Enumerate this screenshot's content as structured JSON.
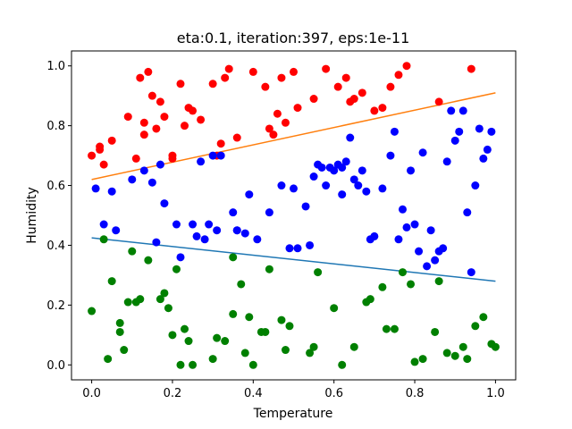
{
  "chart_data": {
    "type": "scatter",
    "title": "eta:0.1, iteration:397, eps:1e-11",
    "xlabel": "Temperature",
    "ylabel": "Humidity",
    "xlim": [
      -0.05,
      1.05
    ],
    "ylim": [
      -0.05,
      1.05
    ],
    "xticks": [
      0.0,
      0.2,
      0.4,
      0.6,
      0.8,
      1.0
    ],
    "xtick_labels": [
      "0.0",
      "0.2",
      "0.4",
      "0.6",
      "0.8",
      "1.0"
    ],
    "yticks": [
      0.0,
      0.2,
      0.4,
      0.6,
      0.8,
      1.0
    ],
    "ytick_labels": [
      "0.0",
      "0.2",
      "0.4",
      "0.6",
      "0.8",
      "1.0"
    ],
    "grid": false,
    "series": [
      {
        "color": "#ff0000",
        "x": [
          0.0,
          0.02,
          0.03,
          0.05,
          0.09,
          0.11,
          0.12,
          0.13,
          0.14,
          0.15,
          0.16,
          0.17,
          0.18,
          0.2,
          0.22,
          0.23,
          0.24,
          0.25,
          0.27,
          0.3,
          0.32,
          0.33,
          0.34,
          0.36,
          0.4,
          0.43,
          0.44,
          0.45,
          0.46,
          0.47,
          0.48,
          0.5,
          0.51,
          0.55,
          0.58,
          0.61,
          0.63,
          0.64,
          0.65,
          0.67,
          0.7,
          0.72,
          0.74,
          0.76,
          0.78,
          0.86,
          0.94,
          0.13,
          0.2,
          0.31,
          0.02
        ],
        "y": [
          0.7,
          0.72,
          0.67,
          0.75,
          0.83,
          0.69,
          0.96,
          0.77,
          0.98,
          0.9,
          0.79,
          0.88,
          0.83,
          0.7,
          0.94,
          0.8,
          0.86,
          0.85,
          0.82,
          0.94,
          0.74,
          0.96,
          0.99,
          0.76,
          0.98,
          0.93,
          0.79,
          0.77,
          0.84,
          0.96,
          0.81,
          0.98,
          0.86,
          0.89,
          0.99,
          0.93,
          0.96,
          0.88,
          0.89,
          0.91,
          0.85,
          0.86,
          0.93,
          0.97,
          1.0,
          0.88,
          0.99,
          0.81,
          0.69,
          0.7,
          0.73
        ]
      },
      {
        "color": "#0000ff",
        "x": [
          0.01,
          0.03,
          0.05,
          0.06,
          0.1,
          0.15,
          0.16,
          0.17,
          0.18,
          0.21,
          0.25,
          0.26,
          0.27,
          0.28,
          0.29,
          0.3,
          0.31,
          0.32,
          0.35,
          0.36,
          0.38,
          0.39,
          0.41,
          0.44,
          0.47,
          0.49,
          0.5,
          0.51,
          0.53,
          0.54,
          0.55,
          0.56,
          0.57,
          0.58,
          0.59,
          0.6,
          0.61,
          0.62,
          0.63,
          0.64,
          0.65,
          0.66,
          0.67,
          0.68,
          0.69,
          0.7,
          0.72,
          0.74,
          0.75,
          0.76,
          0.77,
          0.78,
          0.79,
          0.8,
          0.81,
          0.82,
          0.83,
          0.84,
          0.85,
          0.86,
          0.87,
          0.88,
          0.89,
          0.9,
          0.91,
          0.92,
          0.93,
          0.94,
          0.95,
          0.96,
          0.97,
          0.98,
          0.99,
          0.13,
          0.22,
          0.36,
          0.62
        ],
        "y": [
          0.59,
          0.47,
          0.58,
          0.45,
          0.62,
          0.61,
          0.41,
          0.67,
          0.54,
          0.47,
          0.47,
          0.43,
          0.68,
          0.42,
          0.47,
          0.7,
          0.45,
          0.7,
          0.51,
          0.45,
          0.44,
          0.57,
          0.42,
          0.51,
          0.6,
          0.39,
          0.59,
          0.39,
          0.53,
          0.4,
          0.63,
          0.67,
          0.66,
          0.6,
          0.66,
          0.65,
          0.67,
          0.57,
          0.68,
          0.76,
          0.62,
          0.6,
          0.65,
          0.58,
          0.42,
          0.43,
          0.59,
          0.7,
          0.78,
          0.42,
          0.52,
          0.46,
          0.65,
          0.47,
          0.38,
          0.71,
          0.33,
          0.45,
          0.35,
          0.38,
          0.39,
          0.68,
          0.85,
          0.75,
          0.78,
          0.85,
          0.51,
          0.31,
          0.6,
          0.79,
          0.69,
          0.72,
          0.78,
          0.65,
          0.36,
          0.45,
          0.66
        ]
      },
      {
        "color": "#008000",
        "x": [
          0.0,
          0.03,
          0.04,
          0.05,
          0.07,
          0.08,
          0.09,
          0.1,
          0.12,
          0.14,
          0.18,
          0.19,
          0.2,
          0.21,
          0.23,
          0.24,
          0.25,
          0.3,
          0.31,
          0.33,
          0.35,
          0.37,
          0.38,
          0.39,
          0.4,
          0.42,
          0.43,
          0.44,
          0.48,
          0.49,
          0.54,
          0.55,
          0.56,
          0.6,
          0.62,
          0.65,
          0.68,
          0.69,
          0.72,
          0.73,
          0.75,
          0.77,
          0.79,
          0.8,
          0.82,
          0.85,
          0.86,
          0.88,
          0.9,
          0.92,
          0.93,
          0.95,
          0.97,
          0.99,
          1.0,
          0.07,
          0.11,
          0.17,
          0.22,
          0.35,
          0.47
        ],
        "y": [
          0.18,
          0.42,
          0.02,
          0.28,
          0.14,
          0.05,
          0.21,
          0.38,
          0.22,
          0.35,
          0.24,
          0.19,
          0.1,
          0.32,
          0.12,
          0.08,
          0.0,
          0.02,
          0.09,
          0.08,
          0.36,
          0.27,
          0.04,
          0.16,
          0.0,
          0.11,
          0.11,
          0.32,
          0.05,
          0.13,
          0.04,
          0.06,
          0.31,
          0.19,
          0.0,
          0.06,
          0.21,
          0.22,
          0.26,
          0.12,
          0.12,
          0.31,
          0.27,
          0.01,
          0.02,
          0.11,
          0.28,
          0.04,
          0.03,
          0.06,
          0.02,
          0.13,
          0.16,
          0.07,
          0.06,
          0.11,
          0.21,
          0.22,
          0.0,
          0.17,
          0.15
        ]
      }
    ],
    "lines": [
      {
        "color": "#ff7f0e",
        "x": [
          0.0,
          1.0
        ],
        "y": [
          0.62,
          0.91
        ]
      },
      {
        "color": "#1f77b4",
        "x": [
          0.0,
          1.0
        ],
        "y": [
          0.425,
          0.28
        ]
      }
    ]
  }
}
